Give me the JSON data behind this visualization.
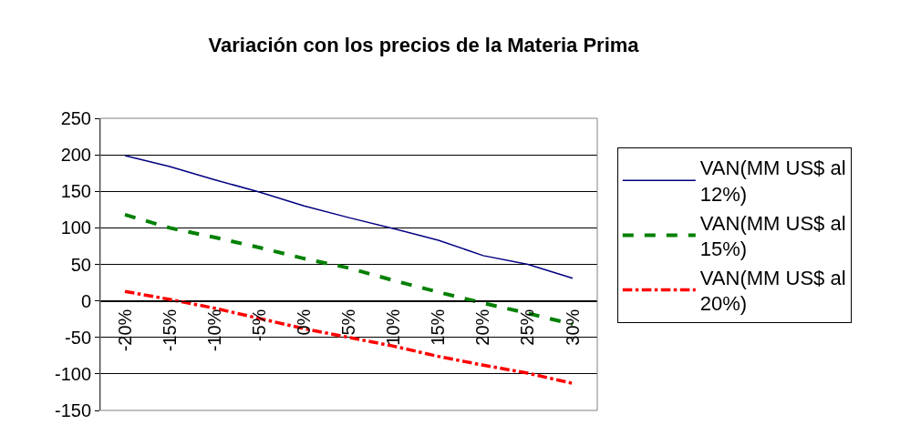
{
  "chart_data": {
    "type": "line",
    "title": "Variación con los precios de la Materia Prima",
    "categories": [
      "-20%",
      "-15%",
      "-10%",
      "-5%",
      "0%",
      "5%",
      "10%",
      "15%",
      "20%",
      "25%",
      "30%"
    ],
    "series": [
      {
        "name": "VAN(MM US$ al 12%)",
        "color": "#000080",
        "line_style": "solid",
        "values": [
          199,
          184,
          166,
          149,
          130,
          114,
          99,
          83,
          62,
          50,
          31
        ]
      },
      {
        "name": "VAN(MM US$ al 15%)",
        "color": "#008000",
        "line_style": "dashed",
        "values": [
          118,
          100,
          87,
          73,
          58,
          45,
          28,
          12,
          -3,
          -17,
          -32
        ]
      },
      {
        "name": "VAN(MM US$ al 20%)",
        "color": "#ff0000",
        "line_style": "dashdot",
        "values": [
          13,
          2,
          -10,
          -24,
          -38,
          -50,
          -62,
          -76,
          -88,
          -99,
          -113
        ]
      }
    ],
    "ylim": [
      -150,
      250
    ],
    "yticks": [
      -150,
      -100,
      -50,
      0,
      50,
      100,
      150,
      200,
      250
    ],
    "grid": "y",
    "legend": "right",
    "marker": "none"
  }
}
